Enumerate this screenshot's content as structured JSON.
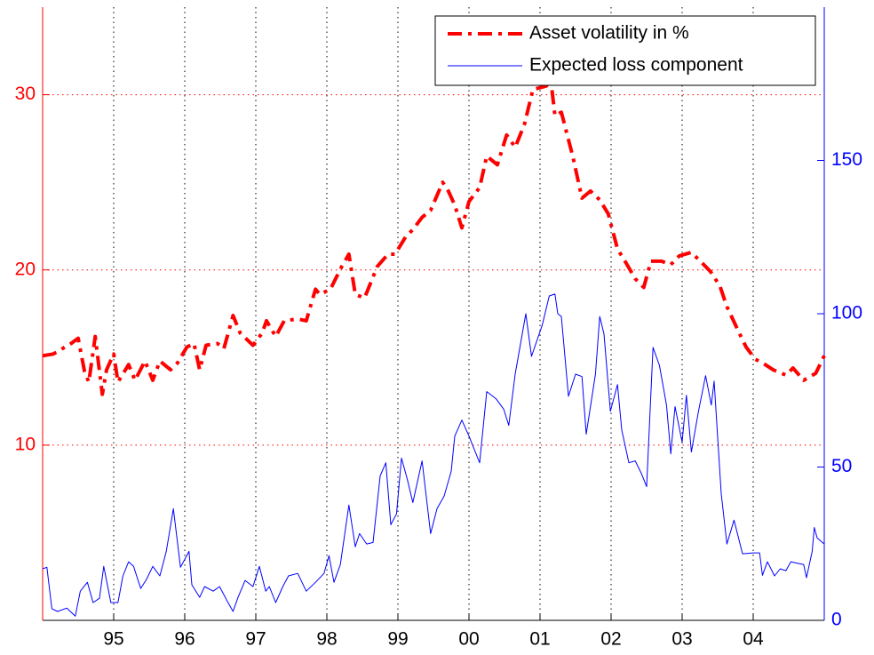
{
  "chart_data": {
    "type": "line",
    "xlim": [
      1994,
      2005
    ],
    "xticks": [
      {
        "value": 1995,
        "label": "95"
      },
      {
        "value": 1996,
        "label": "96"
      },
      {
        "value": 1997,
        "label": "97"
      },
      {
        "value": 1998,
        "label": "98"
      },
      {
        "value": 1999,
        "label": "99"
      },
      {
        "value": 2000,
        "label": "00"
      },
      {
        "value": 2001,
        "label": "01"
      },
      {
        "value": 2002,
        "label": "02"
      },
      {
        "value": 2003,
        "label": "03"
      },
      {
        "value": 2004,
        "label": "04"
      }
    ],
    "ylim": [
      0,
      35
    ],
    "yticks": [
      10,
      20,
      30
    ],
    "y_color": "#ff0000",
    "y2lim": [
      0,
      200
    ],
    "y2ticks": [
      0,
      50,
      100,
      150
    ],
    "y2_color": "#0000ff",
    "grid": true,
    "legend": "upper right",
    "series": [
      {
        "name": "Asset volatility in %",
        "color": "#ff0000",
        "axis": "y",
        "style": "dashdot",
        "x": [
          1994.0,
          1994.15,
          1994.4,
          1994.5,
          1994.59,
          1994.65,
          1994.74,
          1994.84,
          1994.9,
          1995.0,
          1995.06,
          1995.21,
          1995.3,
          1995.44,
          1995.55,
          1995.65,
          1995.8,
          1995.9,
          1996.03,
          1996.13,
          1996.21,
          1996.3,
          1996.46,
          1996.55,
          1996.68,
          1996.78,
          1996.96,
          1997.09,
          1997.15,
          1997.28,
          1997.4,
          1997.59,
          1997.71,
          1997.84,
          1997.9,
          1998.05,
          1998.21,
          1998.31,
          1998.4,
          1998.53,
          1998.71,
          1998.86,
          1998.96,
          1999.11,
          1999.21,
          1999.34,
          1999.46,
          1999.63,
          1999.71,
          1999.8,
          1999.9,
          2000.0,
          2000.15,
          2000.25,
          2000.4,
          2000.53,
          2000.65,
          2000.78,
          2000.9,
          2001.0,
          2001.09,
          2001.15,
          2001.21,
          2001.3,
          2001.46,
          2001.59,
          2001.71,
          2001.84,
          2001.96,
          2002.09,
          2002.21,
          2002.34,
          2002.46,
          2002.56,
          2002.71,
          2002.84,
          2002.96,
          2003.13,
          2003.28,
          2003.4,
          2003.53,
          2003.63,
          2003.78,
          2003.9,
          2004.03,
          2004.13,
          2004.28,
          2004.46,
          2004.56,
          2004.71,
          2004.88,
          2005.0
        ],
        "values": [
          15.1,
          15.2,
          15.8,
          16.1,
          14.2,
          13.6,
          16.2,
          12.9,
          14.3,
          15.2,
          13.6,
          14.6,
          13.7,
          14.8,
          13.7,
          14.8,
          14.3,
          14.7,
          15.6,
          15.8,
          14.3,
          15.7,
          15.8,
          15.5,
          17.4,
          16.4,
          15.7,
          16.4,
          17.1,
          16.2,
          17.1,
          17.2,
          17.1,
          18.9,
          18.6,
          18.9,
          20.2,
          20.9,
          18.6,
          18.4,
          20.2,
          20.9,
          20.9,
          21.9,
          22.3,
          23.0,
          23.4,
          25.0,
          24.5,
          23.7,
          22.4,
          23.9,
          24.7,
          26.5,
          26.0,
          27.7,
          27.0,
          28.3,
          30.3,
          30.4,
          30.5,
          30.9,
          28.8,
          29.0,
          26.5,
          24.1,
          24.5,
          24.0,
          23.2,
          21.2,
          20.4,
          19.5,
          19.0,
          20.5,
          20.5,
          20.3,
          20.8,
          21.0,
          20.4,
          19.9,
          19.1,
          17.9,
          16.6,
          15.6,
          14.9,
          14.7,
          14.3,
          14.0,
          14.4,
          13.7,
          14.1,
          15.1
        ]
      },
      {
        "name": "Expected loss component",
        "color": "#0000ff",
        "axis": "y2",
        "style": "solid",
        "x": [
          1994.0,
          1994.06,
          1994.13,
          1994.21,
          1994.34,
          1994.46,
          1994.53,
          1994.63,
          1994.71,
          1994.8,
          1994.86,
          1994.96,
          1995.06,
          1995.13,
          1995.21,
          1995.28,
          1995.38,
          1995.46,
          1995.55,
          1995.65,
          1995.74,
          1995.84,
          1995.94,
          1996.06,
          1996.1,
          1996.21,
          1996.28,
          1996.4,
          1996.49,
          1996.59,
          1996.68,
          1996.75,
          1996.85,
          1996.96,
          1997.05,
          1997.14,
          1997.19,
          1997.28,
          1997.38,
          1997.46,
          1997.59,
          1997.71,
          1997.84,
          1997.96,
          1998.03,
          1998.1,
          1998.19,
          1998.31,
          1998.4,
          1998.46,
          1998.56,
          1998.65,
          1998.75,
          1998.83,
          1998.9,
          1998.98,
          1999.05,
          1999.13,
          1999.21,
          1999.34,
          1999.46,
          1999.55,
          1999.65,
          1999.75,
          1999.8,
          1999.9,
          2000.0,
          2000.15,
          2000.25,
          2000.38,
          2000.49,
          2000.56,
          2000.65,
          2000.8,
          2000.88,
          2001.03,
          2001.13,
          2001.21,
          2001.25,
          2001.3,
          2001.4,
          2001.5,
          2001.59,
          2001.65,
          2001.78,
          2001.84,
          2001.9,
          2001.99,
          2002.09,
          2002.15,
          2002.25,
          2002.34,
          2002.43,
          2002.5,
          2002.59,
          2002.68,
          2002.78,
          2002.84,
          2002.9,
          2003.0,
          2003.06,
          2003.13,
          2003.23,
          2003.33,
          2003.41,
          2003.45,
          2003.55,
          2003.63,
          2003.73,
          2003.85,
          2004.0,
          2004.09,
          2004.13,
          2004.2,
          2004.3,
          2004.38,
          2004.46,
          2004.53,
          2004.71,
          2004.75,
          2004.83,
          2004.86,
          2004.9,
          2005.0
        ],
        "values": [
          16.8,
          17.3,
          3.8,
          2.9,
          4.0,
          1.4,
          9.5,
          12.4,
          5.8,
          7.2,
          17.6,
          5.8,
          5.8,
          14.5,
          19.1,
          17.6,
          10.4,
          13.3,
          17.6,
          14.5,
          22.5,
          36.4,
          17.3,
          22.5,
          11.6,
          7.5,
          11.0,
          9.5,
          11.0,
          6.6,
          2.9,
          7.5,
          13.0,
          11.0,
          17.6,
          9.5,
          11.0,
          5.8,
          11.0,
          14.5,
          15.3,
          9.5,
          12.4,
          15.3,
          21.1,
          12.4,
          18.2,
          37.6,
          24.0,
          28.3,
          24.9,
          25.4,
          47.1,
          51.4,
          31.2,
          34.7,
          52.9,
          46.2,
          38.4,
          52.0,
          28.3,
          36.4,
          40.5,
          48.6,
          60.1,
          65.3,
          60.1,
          51.4,
          74.6,
          72.3,
          68.8,
          63.6,
          80.3,
          100.0,
          86.1,
          96.2,
          105.8,
          106.4,
          100.0,
          99.1,
          73.1,
          80.3,
          79.5,
          60.7,
          80.3,
          99.1,
          93.4,
          68.2,
          76.9,
          62.1,
          51.4,
          52.0,
          47.7,
          43.6,
          89.0,
          83.2,
          70.2,
          54.3,
          69.7,
          58.1,
          73.4,
          54.9,
          68.2,
          79.8,
          70.2,
          78.0,
          41.3,
          24.9,
          32.7,
          21.7,
          22.0,
          22.0,
          14.7,
          19.1,
          14.5,
          16.8,
          16.2,
          19.1,
          18.2,
          13.9,
          22.5,
          30.3,
          26.9,
          24.9
        ]
      }
    ]
  }
}
